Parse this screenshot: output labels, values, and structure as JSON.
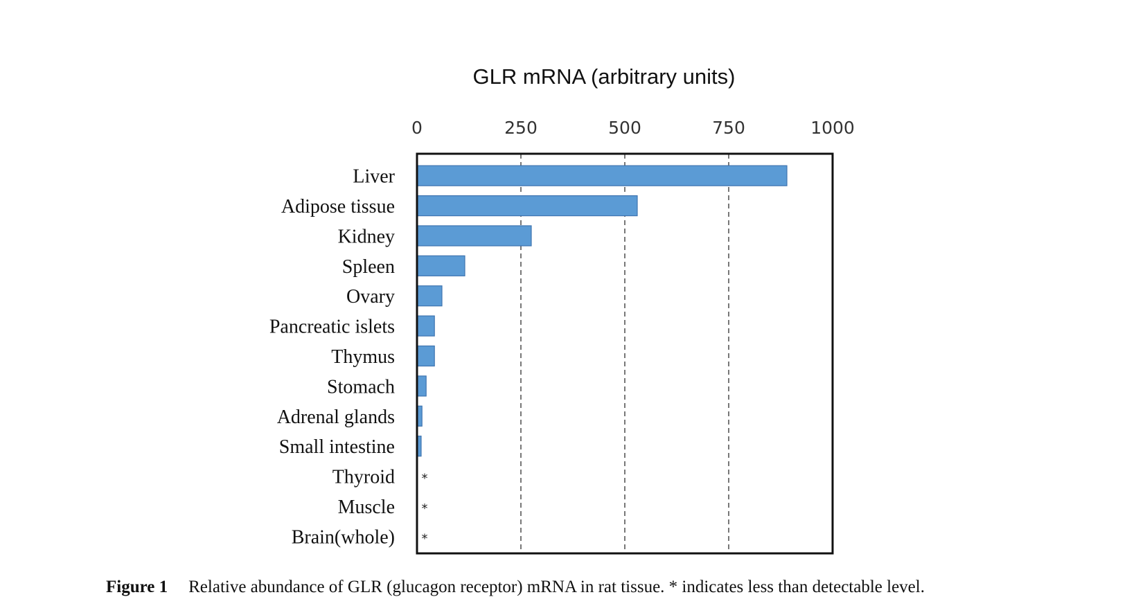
{
  "chart_data": {
    "type": "bar",
    "orientation": "horizontal",
    "title": "GLR mRNA (arbitrary units)",
    "xlabel": "GLR mRNA (arbitrary units)",
    "ylabel": "",
    "xlim": [
      0,
      1000
    ],
    "x_ticks": [
      "0",
      "250",
      "500",
      "750",
      "1000"
    ],
    "grid": "vertical dashed",
    "categories": [
      "Liver",
      "Adipose tissue",
      "Kidney",
      "Spleen",
      "Ovary",
      "Pancreatic islets",
      "Thymus",
      "Stomach",
      "Adrenal glands",
      "Small intestine",
      "Thyroid",
      "Muscle",
      "Brain(whole)"
    ],
    "values": [
      890,
      530,
      275,
      115,
      60,
      42,
      42,
      22,
      12,
      10,
      null,
      null,
      null
    ],
    "annotations": [
      "*",
      "*",
      "*"
    ],
    "bar_color": "#5b9bd5",
    "bar_edge_color": "#3f74b0"
  },
  "caption": {
    "label": "Figure 1",
    "text": "Relative abundance of GLR (glucagon receptor) mRNA in rat tissue. * indicates less than detectable level."
  }
}
